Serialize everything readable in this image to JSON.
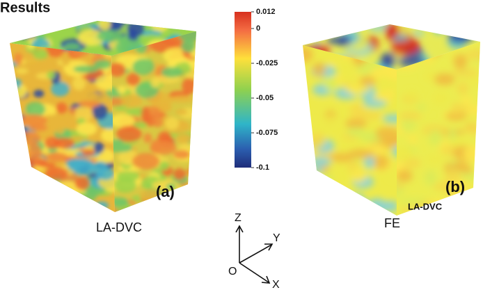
{
  "header": {
    "title": "Results"
  },
  "colorbar": {
    "range": [
      -0.1,
      0.012
    ],
    "ticks": [
      0.012,
      0,
      -0.025,
      -0.05,
      -0.075,
      -0.1
    ]
  },
  "panels": [
    {
      "tag": "(a)",
      "label": "LA-DVC"
    },
    {
      "tag": "(b)",
      "label": "FE",
      "label_superscript": "LA-DVC"
    }
  ],
  "axes": {
    "z": "Z",
    "y": "Y",
    "x": "X",
    "origin": "O"
  }
}
